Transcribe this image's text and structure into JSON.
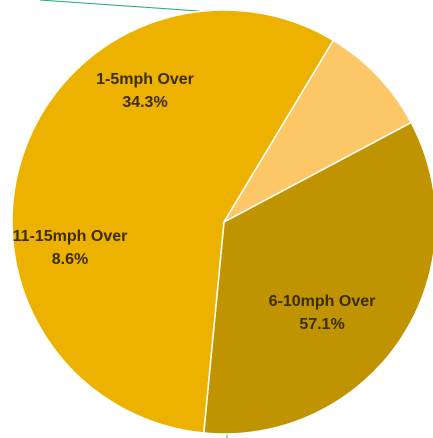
{
  "chart_data": {
    "type": "pie",
    "title": "",
    "slices": [
      {
        "label": "1-5mph Over",
        "value": 34.3,
        "value_label": "34.3%",
        "color": "#C09300"
      },
      {
        "label": "6-10mph Over",
        "value": 57.1,
        "value_label": "57.1%",
        "color": "#EDB200"
      },
      {
        "label": "11-15mph Over",
        "value": 8.6,
        "value_label": "8.6%",
        "color": "#FDC667"
      }
    ],
    "label_color": "#3A2D00",
    "slice_border_color": "#FFFFFF",
    "connector_color": "#1FAA7A",
    "legend": "none"
  }
}
